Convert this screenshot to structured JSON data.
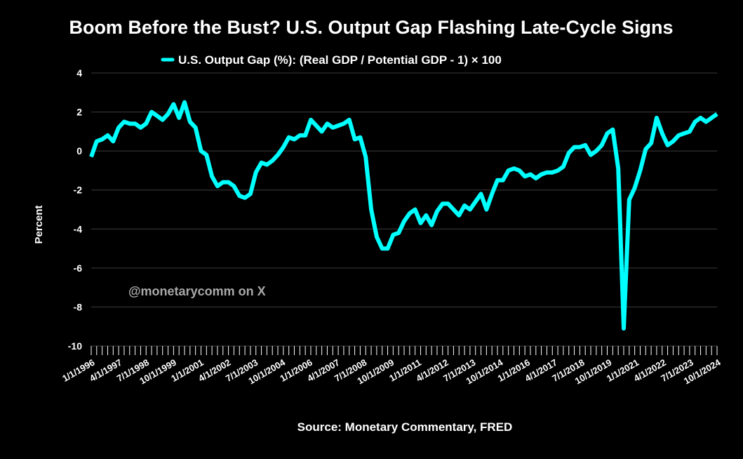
{
  "chart_data": {
    "type": "line",
    "title": "Boom Before the Bust? U.S. Output Gap Flashing Late-Cycle Signs",
    "ylabel": "Percent",
    "source": "Source: Monetary Commentary, FRED",
    "watermark": "@monetarycomm on X",
    "ylim": [
      -10,
      4
    ],
    "yticks": [
      "4",
      "2",
      "0",
      "-2",
      "-4",
      "-6",
      "-8",
      "-10"
    ],
    "grid": "horizontal",
    "legend_position": "top-center",
    "x_tick_labels": [
      "1/1/1996",
      "4/1/1997",
      "7/1/1998",
      "10/1/1999",
      "1/1/2001",
      "4/1/2002",
      "7/1/2003",
      "10/1/2004",
      "1/1/2006",
      "4/1/2007",
      "7/1/2008",
      "10/1/2009",
      "1/1/2011",
      "4/1/2012",
      "7/1/2013",
      "10/1/2014",
      "1/1/2016",
      "4/1/2017",
      "7/1/2018",
      "10/1/2019",
      "1/1/2021",
      "4/1/2022",
      "7/1/2023",
      "10/1/2024"
    ],
    "x_start": "1/1/1996",
    "x_end": "10/1/2024",
    "x_frequency": "quarterly",
    "series": [
      {
        "name": "U.S. Output Gap (%): (Real GDP / Potential GDP - 1) × 100",
        "color": "#00FFFF",
        "values": [
          -0.3,
          0.5,
          0.6,
          0.8,
          0.5,
          1.2,
          1.5,
          1.4,
          1.4,
          1.2,
          1.4,
          2.0,
          1.8,
          1.6,
          1.9,
          2.4,
          1.7,
          2.5,
          1.5,
          1.2,
          0.0,
          -0.2,
          -1.3,
          -1.8,
          -1.6,
          -1.6,
          -1.8,
          -2.3,
          -2.4,
          -2.2,
          -1.1,
          -0.6,
          -0.7,
          -0.5,
          -0.2,
          0.2,
          0.7,
          0.6,
          0.8,
          0.8,
          1.6,
          1.3,
          1.0,
          1.4,
          1.2,
          1.3,
          1.4,
          1.6,
          0.6,
          0.7,
          -0.3,
          -3.0,
          -4.4,
          -5.0,
          -5.0,
          -4.3,
          -4.2,
          -3.6,
          -3.2,
          -3.0,
          -3.7,
          -3.3,
          -3.8,
          -3.1,
          -2.7,
          -2.7,
          -3.0,
          -3.3,
          -2.8,
          -3.0,
          -2.6,
          -2.2,
          -3.0,
          -2.2,
          -1.5,
          -1.5,
          -1.0,
          -0.9,
          -1.0,
          -1.3,
          -1.2,
          -1.4,
          -1.2,
          -1.1,
          -1.1,
          -1.0,
          -0.8,
          -0.1,
          0.2,
          0.2,
          0.3,
          -0.2,
          0.0,
          0.3,
          0.9,
          1.1,
          -0.9,
          -9.1,
          -2.5,
          -1.9,
          -1.0,
          0.1,
          0.4,
          1.7,
          0.9,
          0.3,
          0.5,
          0.8,
          0.9,
          1.0,
          1.5,
          1.7,
          1.5,
          1.7,
          1.9
        ]
      }
    ]
  }
}
